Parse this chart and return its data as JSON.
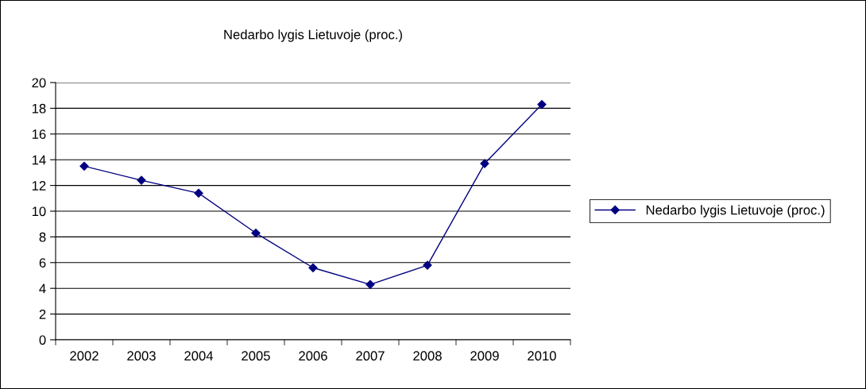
{
  "chart_data": {
    "type": "line",
    "title": "Nedarbo lygis Lietuvoje (proc.)",
    "categories": [
      "2002",
      "2003",
      "2004",
      "2005",
      "2006",
      "2007",
      "2008",
      "2009",
      "2010"
    ],
    "series": [
      {
        "name": "Nedarbo lygis Lietuvoje (proc.)",
        "color": "#000080",
        "values": [
          13.5,
          12.4,
          11.4,
          8.3,
          5.6,
          4.3,
          5.8,
          13.7,
          18.3
        ]
      }
    ],
    "ylim": [
      0,
      20
    ],
    "yticks": [
      0,
      2,
      4,
      6,
      8,
      10,
      12,
      14,
      16,
      18,
      20
    ],
    "grid": "y",
    "legend": "right",
    "marker": "diamond",
    "line_style": "solid"
  }
}
